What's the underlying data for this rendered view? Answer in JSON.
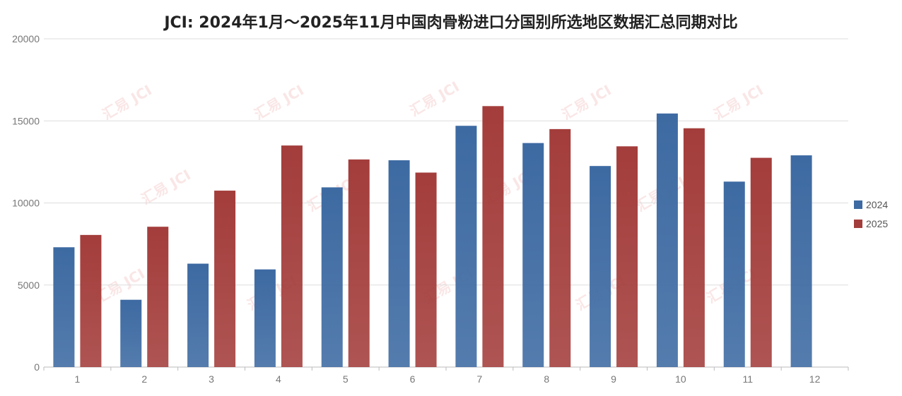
{
  "chart_data": {
    "type": "bar",
    "title": "JCI: 2024年1月～2025年11月中国肉骨粉进口分国别所选地区数据汇总同期对比",
    "categories": [
      "1",
      "2",
      "3",
      "4",
      "5",
      "6",
      "7",
      "8",
      "9",
      "10",
      "11",
      "12"
    ],
    "series": [
      {
        "name": "2024",
        "color": "#3d6aa2",
        "values": [
          7300,
          4100,
          6300,
          5950,
          10950,
          12600,
          14700,
          13650,
          12250,
          15450,
          11300,
          12900
        ]
      },
      {
        "name": "2025",
        "color": "#a33d3b",
        "values": [
          8050,
          8550,
          10750,
          13500,
          12650,
          11850,
          15900,
          14500,
          13450,
          14550,
          12750,
          null
        ]
      }
    ],
    "ylim": [
      0,
      20000
    ],
    "yticks": [
      0,
      5000,
      10000,
      15000,
      20000
    ],
    "grid": true,
    "legend_position": "right",
    "watermark": "汇易 JCI"
  }
}
